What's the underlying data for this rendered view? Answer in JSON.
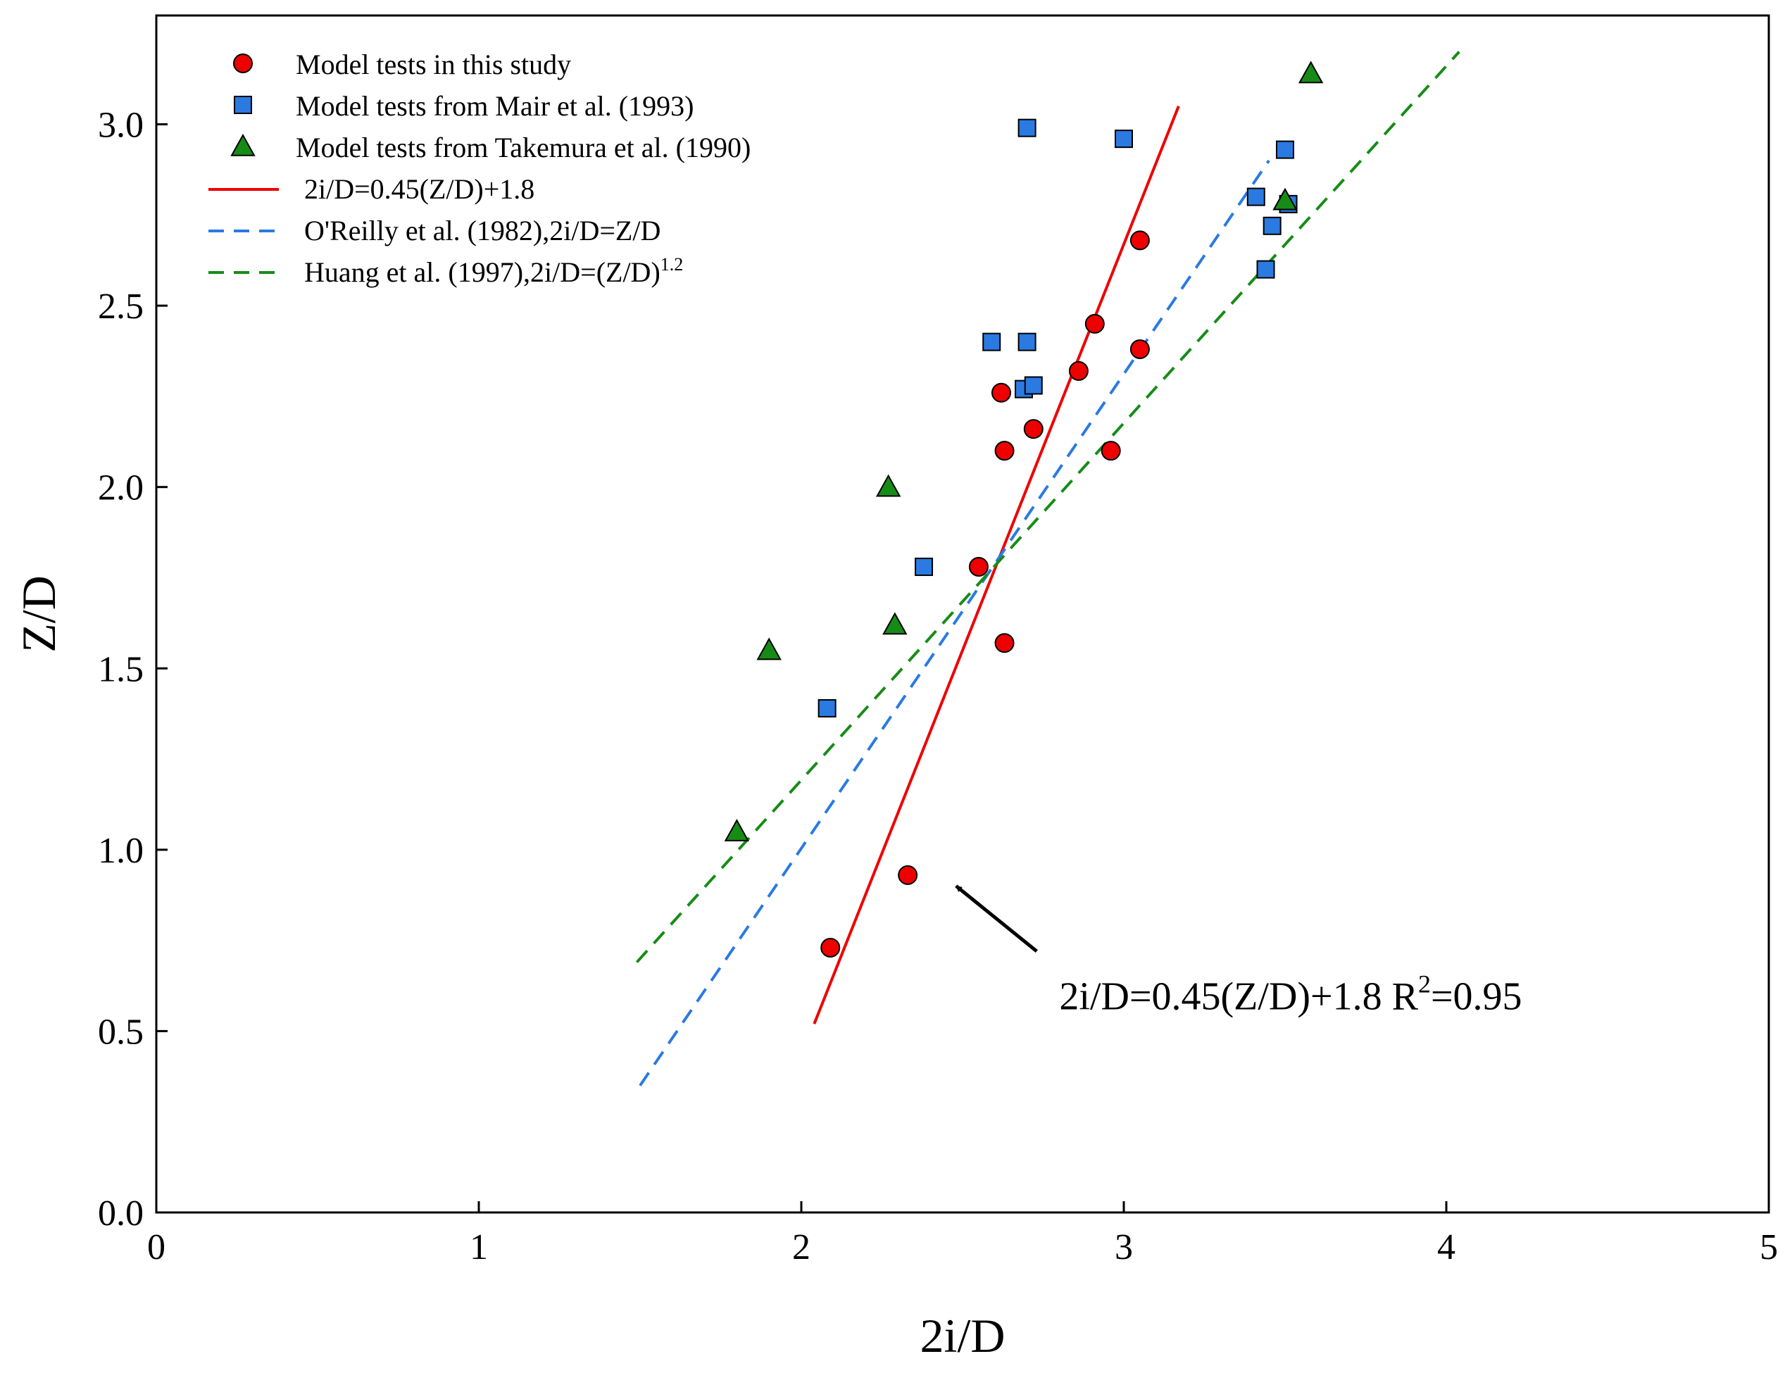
{
  "chart_data": {
    "type": "scatter",
    "xlabel": "2i/D",
    "ylabel": "Z/D",
    "xlim": [
      0,
      5
    ],
    "ylim": [
      0,
      3.3
    ],
    "xticks": [
      "0",
      "1",
      "2",
      "3",
      "4",
      "5"
    ],
    "yticks": [
      "0.0",
      "0.5",
      "1.0",
      "1.5",
      "2.0",
      "2.5",
      "3.0"
    ],
    "grid": false,
    "legend_position": "top-left",
    "series": [
      {
        "name": "Model tests in this study",
        "marker": "circle",
        "color": "#ee0000",
        "points": [
          [
            2.09,
            0.73
          ],
          [
            2.33,
            0.93
          ],
          [
            2.55,
            1.78
          ],
          [
            2.63,
            1.57
          ],
          [
            2.63,
            2.1
          ],
          [
            2.62,
            2.26
          ],
          [
            2.72,
            2.16
          ],
          [
            2.86,
            2.32
          ],
          [
            2.91,
            2.45
          ],
          [
            2.96,
            2.1
          ],
          [
            3.05,
            2.38
          ],
          [
            3.05,
            2.68
          ]
        ]
      },
      {
        "name": "Model tests from Mair et al. (1993)",
        "marker": "square",
        "color": "#2a7ae2",
        "points": [
          [
            2.08,
            1.39
          ],
          [
            2.38,
            1.78
          ],
          [
            2.59,
            2.4
          ],
          [
            2.69,
            2.27
          ],
          [
            2.7,
            2.4
          ],
          [
            2.72,
            2.28
          ],
          [
            2.7,
            2.99
          ],
          [
            3.0,
            2.96
          ],
          [
            3.41,
            2.8
          ],
          [
            3.44,
            2.6
          ],
          [
            3.46,
            2.72
          ],
          [
            3.5,
            2.93
          ],
          [
            3.51,
            2.78
          ]
        ]
      },
      {
        "name": "Model tests from Takemura et al. (1990)",
        "marker": "triangle",
        "color": "#168c16",
        "points": [
          [
            1.8,
            1.05
          ],
          [
            1.9,
            1.55
          ],
          [
            2.27,
            2.0
          ],
          [
            2.29,
            1.62
          ],
          [
            3.5,
            2.79
          ],
          [
            3.58,
            3.14
          ]
        ]
      }
    ],
    "lines": [
      {
        "name": "2i/D=0.45(Z/D)+1.8",
        "style": "solid",
        "color": "#ee0000",
        "points": [
          [
            2.04,
            0.52
          ],
          [
            3.17,
            3.05
          ]
        ]
      },
      {
        "name": "O'Reilly et al. (1982),2i/D=Z/D",
        "style": "dashed",
        "color": "#2a7ae2",
        "points": [
          [
            1.5,
            0.35
          ],
          [
            3.45,
            2.9
          ]
        ]
      },
      {
        "name": "Huang et al. (1997),2i/D=(Z/D)",
        "name_sup": "1.2",
        "style": "dashed",
        "color": "#168c16",
        "points": [
          [
            1.49,
            0.69
          ],
          [
            4.04,
            3.2
          ]
        ]
      }
    ],
    "annotation": {
      "text": "2i/D=0.45(Z/D)+1.8   R",
      "sup": "2",
      "suffix": "=0.95",
      "text_anchor_data": [
        2.8,
        0.56
      ],
      "arrow_from_data": [
        2.73,
        0.72
      ],
      "arrow_to_data": [
        2.48,
        0.9
      ]
    }
  }
}
